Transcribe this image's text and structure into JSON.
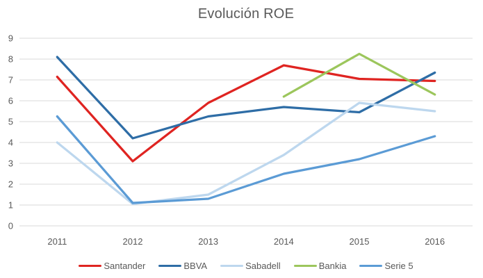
{
  "chart_data": {
    "type": "line",
    "title": "Evolución ROE",
    "categories": [
      "2011",
      "2012",
      "2013",
      "2014",
      "2015",
      "2016"
    ],
    "series": [
      {
        "name": "Santander",
        "color": "#df2421",
        "values": [
          7.15,
          3.1,
          5.9,
          7.7,
          7.05,
          6.95
        ]
      },
      {
        "name": "BBVA",
        "color": "#2e6da6",
        "values": [
          8.1,
          4.2,
          5.25,
          5.7,
          5.45,
          7.35
        ]
      },
      {
        "name": "Sabadell",
        "color": "#bdd7ee",
        "values": [
          4.0,
          1.05,
          1.5,
          3.4,
          5.9,
          5.5
        ]
      },
      {
        "name": "Bankia",
        "color": "#9cc65c",
        "values": [
          null,
          null,
          null,
          6.2,
          8.25,
          6.3
        ]
      },
      {
        "name": "Serie 5",
        "color": "#5b9bd5",
        "values": [
          5.25,
          1.1,
          1.3,
          2.5,
          3.2,
          4.3
        ]
      }
    ],
    "ylim": [
      0,
      9
    ],
    "ytick_step": 1,
    "yticks": [
      0,
      1,
      2,
      3,
      4,
      5,
      6,
      7,
      8,
      9
    ],
    "grid": "horizontal",
    "legend_position": "bottom",
    "grid_color": "#d9d9d9",
    "axis_text_color": "#595959",
    "title_color": "#595959"
  }
}
